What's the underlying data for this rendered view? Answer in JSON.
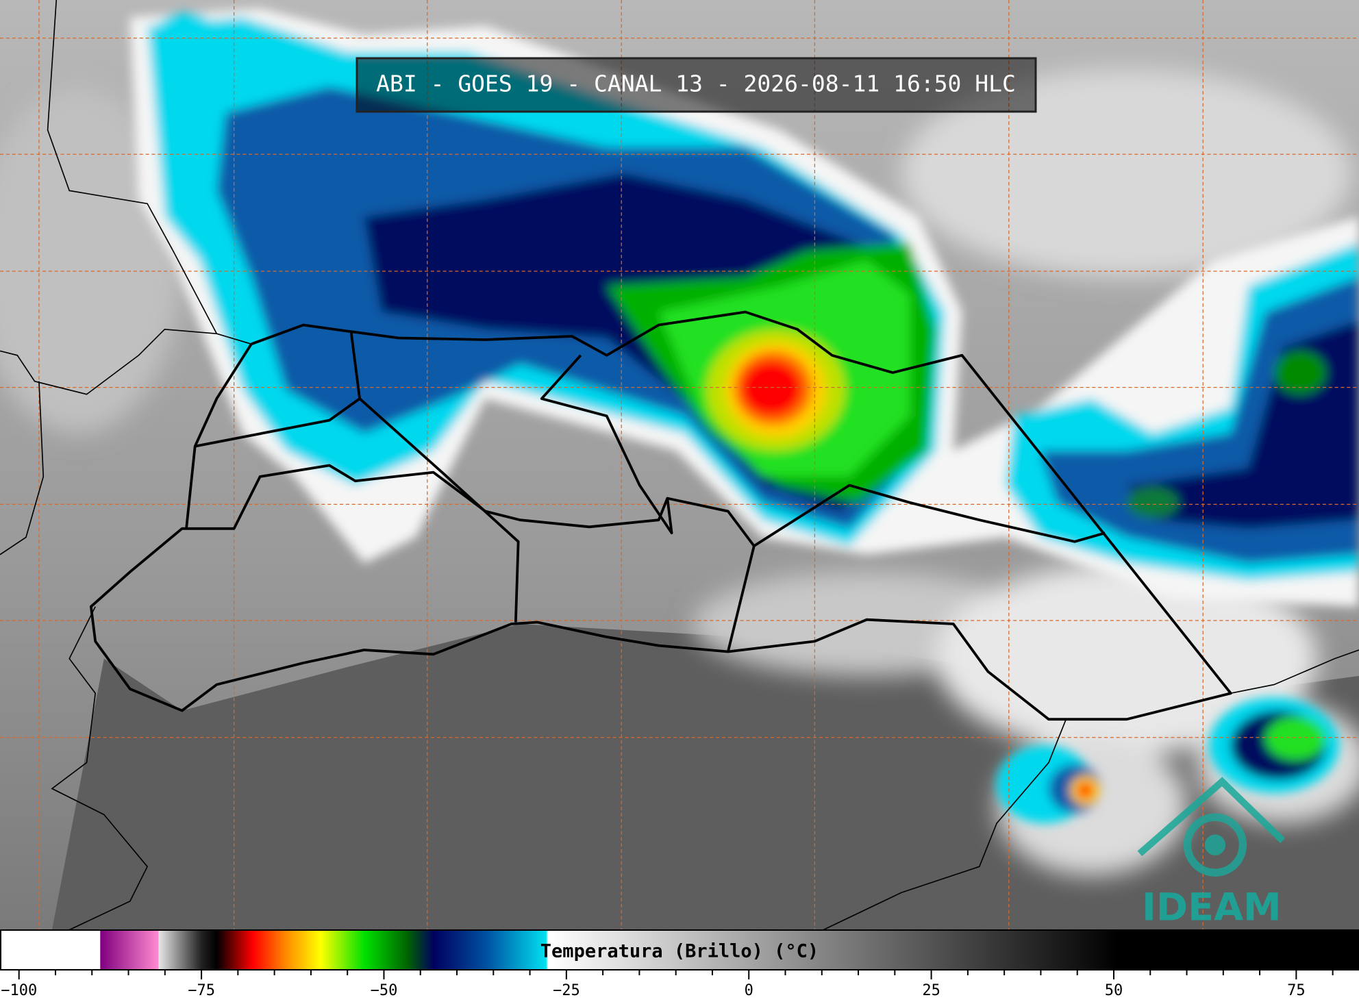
{
  "header": {
    "title": "ABI - GOES 19 - CANAL 13 - 2026-08-11 16:50 HLC"
  },
  "colorbar": {
    "label": "Temperatura (Brillo) (°C)",
    "lim": [
      -102.6,
      83.6
    ],
    "ticks": [
      {
        "value": -100,
        "label": "−100"
      },
      {
        "value": -75,
        "label": "−75"
      },
      {
        "value": -50,
        "label": "−50"
      },
      {
        "value": -25,
        "label": "−25"
      },
      0,
      25,
      50,
      75
    ],
    "minor_ticks": [
      -95,
      -90,
      -85,
      -80,
      -70,
      -65,
      -60,
      -55,
      -45,
      -40,
      -35,
      -30,
      -20,
      -15,
      -10,
      -5,
      5,
      10,
      15,
      20,
      30,
      35,
      40,
      45,
      55,
      60,
      65,
      70,
      80
    ],
    "stops": [
      {
        "value": -102.6,
        "color": "#ffffff"
      },
      {
        "value": -89,
        "color": "#ffffff"
      },
      {
        "value": -88.9,
        "color": "#800080"
      },
      {
        "value": -81,
        "color": "#ff8ad0"
      },
      {
        "value": -80.9,
        "color": "#e6e6e6"
      },
      {
        "value": -75,
        "color": "#202020"
      },
      {
        "value": -73,
        "color": "#000000"
      },
      {
        "value": -68,
        "color": "#ff0000"
      },
      {
        "value": -63.4,
        "color": "#ff8c00"
      },
      {
        "value": -58.7,
        "color": "#ffff00"
      },
      {
        "value": -52.7,
        "color": "#00e000"
      },
      {
        "value": -46.8,
        "color": "#006400"
      },
      {
        "value": -43.2,
        "color": "#000060"
      },
      {
        "value": -36,
        "color": "#0050a0"
      },
      {
        "value": -27.8,
        "color": "#00e0f0"
      },
      {
        "value": -27.5,
        "color": "#ffffff"
      },
      {
        "value": 50.6,
        "color": "#000000"
      },
      {
        "value": 83.6,
        "color": "#000000"
      }
    ]
  },
  "logo": {
    "text": "IDEAM"
  }
}
